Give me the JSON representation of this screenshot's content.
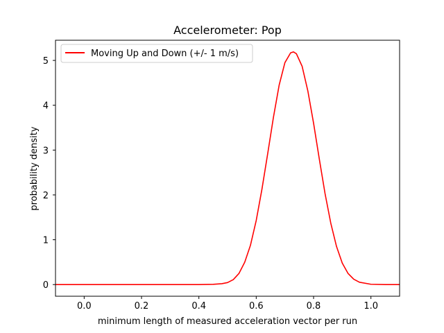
{
  "chart_data": {
    "type": "line",
    "title": "Accelerometer: Pop",
    "xlabel": "minimum length of measured acceleration vector per run",
    "ylabel": "probability density",
    "xlim": [
      -0.1,
      1.1
    ],
    "ylim": [
      -0.26,
      5.45
    ],
    "xticks": [
      0.0,
      0.2,
      0.4,
      0.6,
      0.8,
      1.0
    ],
    "xtick_labels": [
      "0.0",
      "0.2",
      "0.4",
      "0.6",
      "0.8",
      "1.0"
    ],
    "yticks": [
      0,
      1,
      2,
      3,
      4,
      5
    ],
    "ytick_labels": [
      "0",
      "1",
      "2",
      "3",
      "4",
      "5"
    ],
    "grid": false,
    "legend_position": "top-left",
    "series": [
      {
        "name": "Moving Up and Down (+/- 1 m/s)",
        "color": "#ff0000",
        "x": [
          -0.1,
          0.0,
          0.1,
          0.2,
          0.3,
          0.4,
          0.45,
          0.48,
          0.5,
          0.52,
          0.54,
          0.56,
          0.58,
          0.6,
          0.62,
          0.64,
          0.66,
          0.68,
          0.7,
          0.72,
          0.73,
          0.74,
          0.76,
          0.78,
          0.8,
          0.82,
          0.84,
          0.86,
          0.88,
          0.9,
          0.92,
          0.94,
          0.96,
          1.0,
          1.05,
          1.1
        ],
        "y": [
          0.0,
          0.0,
          0.0,
          0.0,
          0.0,
          0.0,
          0.006,
          0.02,
          0.045,
          0.11,
          0.25,
          0.5,
          0.88,
          1.43,
          2.13,
          2.92,
          3.73,
          4.45,
          4.95,
          5.17,
          5.19,
          5.15,
          4.87,
          4.32,
          3.6,
          2.8,
          2.03,
          1.37,
          0.85,
          0.48,
          0.25,
          0.12,
          0.052,
          0.007,
          0.0004,
          0.0
        ]
      }
    ]
  }
}
